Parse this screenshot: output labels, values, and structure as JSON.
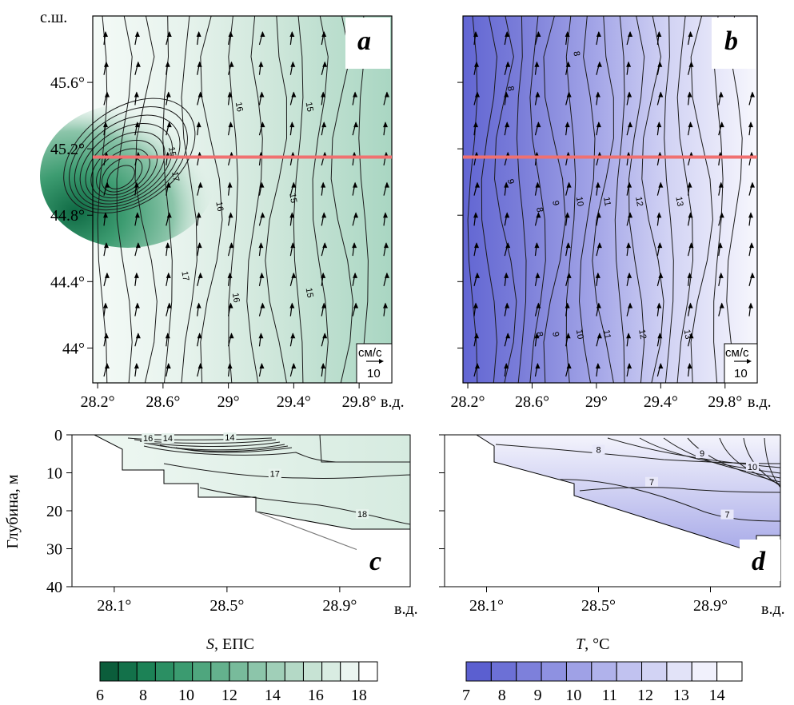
{
  "chart_data": [
    {
      "panel": "a",
      "type": "heatmap",
      "variable": "S",
      "x_unit": "в.д.",
      "y_unit": "с.ш.",
      "x_ticks": [
        "28.2°",
        "28.6°",
        "29°",
        "29.4°",
        "29.8°"
      ],
      "x_tick_values": [
        28.2,
        28.6,
        29.0,
        29.4,
        29.8
      ],
      "y_ticks": [
        "45.6°",
        "45.2°",
        "44.8°",
        "44.4°",
        "44°"
      ],
      "y_tick_values": [
        45.6,
        45.2,
        44.8,
        44.4,
        44.0
      ],
      "xlim": [
        28.17,
        30.0
      ],
      "ylim": [
        43.79,
        46.0
      ],
      "section_line_lat": 45.15,
      "contour_labels": [
        {
          "text": "16",
          "x": 29.05,
          "y": 45.45
        },
        {
          "text": "15",
          "x": 29.48,
          "y": 45.45
        },
        {
          "text": "15",
          "x": 28.64,
          "y": 45.18
        },
        {
          "text": "17",
          "x": 28.66,
          "y": 45.03
        },
        {
          "text": "16",
          "x": 28.93,
          "y": 44.85
        },
        {
          "text": "15",
          "x": 29.38,
          "y": 44.9
        },
        {
          "text": "17",
          "x": 28.72,
          "y": 44.43
        },
        {
          "text": "16",
          "x": 29.03,
          "y": 44.3
        },
        {
          "text": "15",
          "x": 29.48,
          "y": 44.33
        }
      ],
      "velocity_scale": {
        "unit": "см/с",
        "value": "10"
      }
    },
    {
      "panel": "b",
      "type": "heatmap",
      "variable": "T",
      "x_unit": "в.д.",
      "x_ticks": [
        "28.2°",
        "28.6°",
        "29°",
        "29.4°",
        "29.8°"
      ],
      "x_tick_values": [
        28.2,
        28.6,
        29.0,
        29.4,
        29.8
      ],
      "xlim": [
        28.17,
        30.0
      ],
      "ylim": [
        43.79,
        46.0
      ],
      "section_line_lat": 45.15,
      "contour_labels": [
        {
          "text": "8",
          "x": 28.86,
          "y": 45.77
        },
        {
          "text": "8",
          "x": 28.45,
          "y": 45.56
        },
        {
          "text": "9",
          "x": 28.45,
          "y": 45.0
        },
        {
          "text": "8",
          "x": 28.63,
          "y": 44.83
        },
        {
          "text": "9",
          "x": 28.73,
          "y": 44.87
        },
        {
          "text": "10",
          "x": 28.88,
          "y": 44.88
        },
        {
          "text": "11",
          "x": 29.05,
          "y": 44.88
        },
        {
          "text": "12",
          "x": 29.25,
          "y": 44.88
        },
        {
          "text": "13",
          "x": 29.5,
          "y": 44.88
        },
        {
          "text": "8",
          "x": 28.63,
          "y": 44.08
        },
        {
          "text": "9",
          "x": 28.73,
          "y": 44.08
        },
        {
          "text": "10",
          "x": 28.88,
          "y": 44.08
        },
        {
          "text": "11",
          "x": 29.05,
          "y": 44.08
        },
        {
          "text": "12",
          "x": 29.27,
          "y": 44.08
        },
        {
          "text": "13",
          "x": 29.55,
          "y": 44.08
        }
      ],
      "velocity_scale": {
        "unit": "см/с",
        "value": "10"
      }
    },
    {
      "panel": "c",
      "type": "heatmap",
      "variable": "S",
      "x_unit": "в.д.",
      "y_label": "Глубина, м",
      "x_ticks": [
        "28.1°",
        "28.5°",
        "28.9°"
      ],
      "x_tick_values": [
        28.1,
        28.5,
        28.9
      ],
      "y_ticks": [
        "0",
        "10",
        "20",
        "30",
        "40"
      ],
      "y_tick_values": [
        0,
        10,
        20,
        30,
        40
      ],
      "xlim": [
        27.95,
        29.15
      ],
      "ylim": [
        0,
        40
      ],
      "contour_labels": [
        {
          "text": "16",
          "x": 28.22,
          "y": 1.5
        },
        {
          "text": "14",
          "x": 28.29,
          "y": 1.5
        },
        {
          "text": "14",
          "x": 28.51,
          "y": 1.3
        },
        {
          "text": "17",
          "x": 28.67,
          "y": 10.8
        },
        {
          "text": "18",
          "x": 28.98,
          "y": 21.5
        }
      ]
    },
    {
      "panel": "d",
      "type": "heatmap",
      "variable": "T",
      "x_unit": "в.д.",
      "x_ticks": [
        "28.1°",
        "28.5°",
        "28.9°"
      ],
      "x_tick_values": [
        28.1,
        28.5,
        28.9
      ],
      "xlim": [
        27.95,
        29.15
      ],
      "ylim": [
        0,
        40
      ],
      "contour_labels": [
        {
          "text": "8",
          "x": 28.5,
          "y": 4.5
        },
        {
          "text": "9",
          "x": 28.87,
          "y": 5.5
        },
        {
          "text": "10",
          "x": 29.05,
          "y": 9.0
        },
        {
          "text": "7",
          "x": 28.69,
          "y": 13.0
        },
        {
          "text": "7",
          "x": 28.96,
          "y": 21.6
        }
      ]
    },
    {
      "type": "colorbar",
      "title_symbol": "S",
      "title_unit": ", ЕПС",
      "tick_labels": [
        "6",
        "8",
        "10",
        "12",
        "14",
        "16",
        "18"
      ],
      "range": [
        6,
        18
      ],
      "colors": [
        "#0b5d3b",
        "#13714a",
        "#1c8256",
        "#2b8f63",
        "#3b9b70",
        "#4fa67e",
        "#64b18d",
        "#78bb9b",
        "#8cc5aa",
        "#a0cfb8",
        "#b4d9c6",
        "#c7e3d4",
        "#d9ece2",
        "#ebf5f0",
        "#ffffff"
      ]
    },
    {
      "type": "colorbar",
      "title_symbol": "T",
      "title_unit": ", °C",
      "tick_labels": [
        "7",
        "8",
        "9",
        "10",
        "11",
        "12",
        "13",
        "14"
      ],
      "range": [
        7,
        14
      ],
      "colors": [
        "#5b5fd0",
        "#6c70d6",
        "#7d80db",
        "#8e91e1",
        "#9fa1e6",
        "#b0b2eb",
        "#c1c2f0",
        "#d2d3f4",
        "#e2e3f8",
        "#f1f1fc",
        "#ffffff"
      ]
    }
  ],
  "labels": {
    "lat_unit": "с.ш.",
    "lon_unit": "в.д.",
    "depth_label": "Глубина, м",
    "panel_a": "a",
    "panel_b": "b",
    "panel_c": "c",
    "panel_d": "d",
    "scale_unit": "см/с",
    "scale_value": "10",
    "colors": {
      "salinity_low": "#0b5d3b",
      "salinity_high": "#ffffff",
      "temperature_low": "#5b5fd0",
      "temperature_high": "#ffffff",
      "section_line": "#f07070"
    }
  }
}
